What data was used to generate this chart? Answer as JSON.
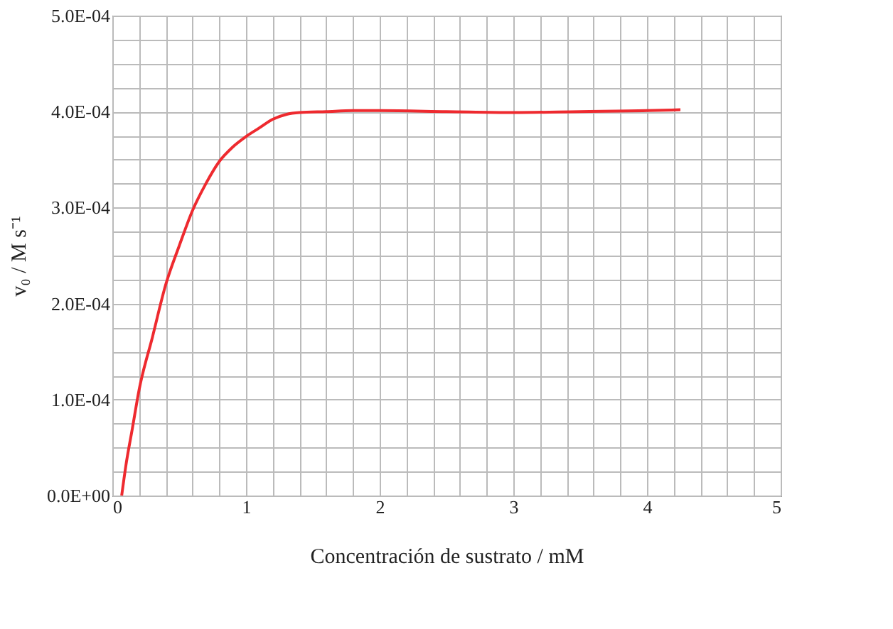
{
  "chart_data": {
    "type": "line",
    "xlabel": "Concentración de sustrato / mM",
    "ylabel": "v₀ / M s⁻¹",
    "series": [
      {
        "color": "#ee2a2f",
        "x": [
          0.07,
          0.1,
          0.15,
          0.2,
          0.3,
          0.4,
          0.5,
          0.6,
          0.7,
          0.8,
          0.9,
          1.0,
          1.1,
          1.2,
          1.3,
          1.4,
          1.6,
          1.8,
          2.0,
          2.5,
          3.0,
          3.5,
          4.0,
          4.25
        ],
        "values": [
          0,
          3e-05,
          7e-05,
          0.00011,
          0.000165,
          0.00022,
          0.00026,
          0.000297,
          0.000325,
          0.000348,
          0.000363,
          0.000374,
          0.000383,
          0.000392,
          0.000397,
          0.000399,
          0.0004,
          0.000401,
          0.000401,
          0.0004,
          0.000399,
          0.0004,
          0.000401,
          0.000402
        ]
      }
    ],
    "xlim": [
      0,
      5
    ],
    "xticks": [
      0,
      {
        "value": 0.2,
        "label": null
      },
      {
        "value": 0.4,
        "label": null
      },
      {
        "value": 0.6,
        "label": null
      },
      {
        "value": 0.8,
        "label": null
      },
      1,
      {
        "value": 1.2,
        "label": null
      },
      {
        "value": 1.4,
        "label": null
      },
      {
        "value": 1.6,
        "label": null
      },
      {
        "value": 1.8,
        "label": null
      },
      2,
      {
        "value": 2.2,
        "label": null
      },
      {
        "value": 2.4,
        "label": null
      },
      {
        "value": 2.6,
        "label": null
      },
      {
        "value": 2.8,
        "label": null
      },
      3,
      {
        "value": 3.2,
        "label": null
      },
      {
        "value": 3.4,
        "label": null
      },
      {
        "value": 3.6,
        "label": null
      },
      {
        "value": 3.8,
        "label": null
      },
      4,
      {
        "value": 4.2,
        "label": null
      },
      {
        "value": 4.4,
        "label": null
      },
      {
        "value": 4.6,
        "label": null
      },
      {
        "value": 4.8,
        "label": null
      },
      5
    ],
    "ylim": [
      0,
      0.0005
    ],
    "yticks": [
      {
        "value": 0,
        "label": "0.0E+00"
      },
      {
        "value": 2.5e-05,
        "label": null
      },
      {
        "value": 5e-05,
        "label": null
      },
      {
        "value": 7.5e-05,
        "label": null
      },
      {
        "value": 0.0001,
        "label": "1.0E-04"
      },
      {
        "value": 0.000125,
        "label": null
      },
      {
        "value": 0.00015,
        "label": null
      },
      {
        "value": 0.000175,
        "label": null
      },
      {
        "value": 0.0002,
        "label": "2.0E-04"
      },
      {
        "value": 0.000225,
        "label": null
      },
      {
        "value": 0.00025,
        "label": null
      },
      {
        "value": 0.000275,
        "label": null
      },
      {
        "value": 0.0003,
        "label": "3.0E-04"
      },
      {
        "value": 0.000325,
        "label": null
      },
      {
        "value": 0.00035,
        "label": null
      },
      {
        "value": 0.000375,
        "label": null
      },
      {
        "value": 0.0004,
        "label": "4.0E-04"
      },
      {
        "value": 0.000425,
        "label": null
      },
      {
        "value": 0.00045,
        "label": null
      },
      {
        "value": 0.000475,
        "label": null
      },
      {
        "value": 0.0005,
        "label": "5.0E-04"
      }
    ],
    "grid": true,
    "line_style": "solid"
  }
}
